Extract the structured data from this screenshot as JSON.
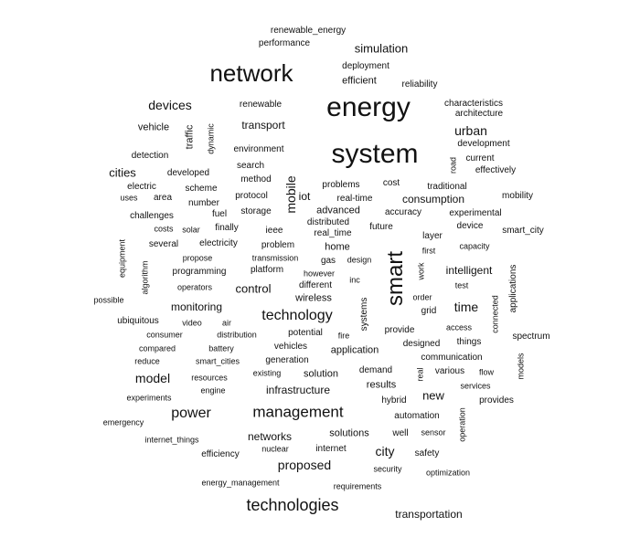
{
  "words": [
    "renewable_energy",
    "performance",
    "simulation",
    "network",
    "deployment",
    "efficient",
    "reliability",
    "energy",
    "devices",
    "renewable",
    "characteristics",
    "architecture",
    "vehicle",
    "transport",
    "traffic",
    "dynamic",
    "urban",
    "system",
    "environment",
    "development",
    "detection",
    "road",
    "current",
    "cities",
    "search",
    "effectively",
    "developed",
    "method",
    "mobile",
    "cost",
    "electric",
    "scheme",
    "traditional",
    "uses",
    "area",
    "protocol",
    "iot",
    "problems",
    "real-time",
    "consumption",
    "mobility",
    "number",
    "fuel",
    "storage",
    "advanced",
    "accuracy",
    "experimental",
    "challenges",
    "finally",
    "ieee",
    "distributed",
    "future",
    "device",
    "smart_city",
    "costs",
    "solar",
    "real_time",
    "equipment",
    "electricity",
    "problem",
    "layer",
    "several",
    "home",
    "capacity",
    "propose",
    "transmission",
    "first",
    "algorithm",
    "gas",
    "design",
    "smart",
    "programming",
    "platform",
    "however",
    "work",
    "intelligent",
    "applications",
    "operators",
    "different",
    "inc",
    "test",
    "possible",
    "control",
    "wireless",
    "order",
    "time",
    "monitoring",
    "systems",
    "connected",
    "grid",
    "technology",
    "ubiquitous",
    "video",
    "air",
    "potential",
    "provide",
    "access",
    "spectrum",
    "consumer",
    "distribution",
    "fire",
    "designed",
    "things",
    "compared",
    "battery",
    "vehicles",
    "application",
    "communication",
    "reduce",
    "smart_cities",
    "generation",
    "demand",
    "real",
    "various",
    "flow",
    "models",
    "model",
    "resources",
    "existing",
    "solution",
    "results",
    "services",
    "engine",
    "infrastructure",
    "new",
    "experiments",
    "hybrid",
    "provides",
    "management",
    "power",
    "automation",
    "emergency",
    "sensor",
    "operation",
    "networks",
    "solutions",
    "well",
    "internet_things",
    "nuclear",
    "internet",
    "city",
    "safety",
    "efficiency",
    "proposed",
    "security",
    "optimization",
    "energy_management",
    "requirements",
    "technologies",
    "transportation"
  ],
  "colors": {
    "background": "#ffffff",
    "text": "#111111"
  }
}
